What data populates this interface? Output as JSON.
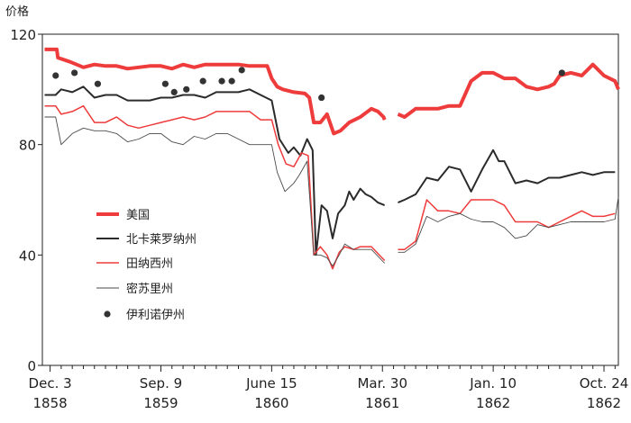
{
  "chart_data": {
    "type": "line",
    "ylabel": "价格",
    "ylim": [
      0,
      120
    ],
    "yticks": [
      0,
      40,
      80,
      120
    ],
    "x_ticks": [
      {
        "x": 0,
        "line1": "Dec. 3",
        "line2": "1858"
      },
      {
        "x": 10,
        "line1": "Sep. 9",
        "line2": "1859"
      },
      {
        "x": 20,
        "line1": "June 15",
        "line2": "1860"
      },
      {
        "x": 30,
        "line1": "Mar. 30",
        "line2": "1861"
      },
      {
        "x": 40,
        "line1": "Jan. 10",
        "line2": "1862"
      },
      {
        "x": 50,
        "line1": "Oct. 24",
        "line2": "1862"
      }
    ],
    "xlim": [
      -0.7,
      51.3
    ],
    "gaps": [
      [
        30.4,
        31.3
      ]
    ],
    "legend_position": "left-center",
    "colors": {
      "us": "#ee3b3b",
      "nc": "#2b2b2b",
      "tn": "#ee3b3b",
      "mo": "#4a4a4a",
      "il": "#333333"
    },
    "series": [
      {
        "key": "us",
        "name": "美国",
        "style": "thick",
        "points": [
          [
            -0.5,
            114.5
          ],
          [
            0.6,
            114.5
          ],
          [
            0.7,
            111.5
          ],
          [
            1.8,
            110
          ],
          [
            3,
            108
          ],
          [
            4,
            109
          ],
          [
            5,
            108.5
          ],
          [
            6,
            108.5
          ],
          [
            7,
            107.5
          ],
          [
            8,
            108
          ],
          [
            9,
            108.5
          ],
          [
            10,
            108.5
          ],
          [
            11,
            107.5
          ],
          [
            12,
            109
          ],
          [
            13,
            108
          ],
          [
            14,
            109
          ],
          [
            15,
            109
          ],
          [
            16,
            109
          ],
          [
            17,
            109
          ],
          [
            18,
            108.5
          ],
          [
            19,
            108.5
          ],
          [
            19.6,
            108.5
          ],
          [
            20,
            104
          ],
          [
            20.5,
            101
          ],
          [
            21,
            100
          ],
          [
            22,
            99
          ],
          [
            23,
            98.5
          ],
          [
            23.4,
            97
          ],
          [
            23.8,
            88
          ],
          [
            24.4,
            88
          ],
          [
            25,
            91
          ],
          [
            25.6,
            84
          ],
          [
            26.2,
            85
          ],
          [
            27,
            88
          ],
          [
            28,
            90
          ],
          [
            29,
            93
          ],
          [
            29.6,
            92
          ],
          [
            30.1,
            90
          ],
          [
            30.2,
            89
          ],
          [
            31.4,
            91
          ],
          [
            32,
            90
          ],
          [
            33,
            93
          ],
          [
            34,
            93
          ],
          [
            35,
            93
          ],
          [
            36,
            94
          ],
          [
            37,
            94
          ],
          [
            38,
            103
          ],
          [
            39,
            106
          ],
          [
            40,
            106
          ],
          [
            41,
            104
          ],
          [
            42,
            104
          ],
          [
            43,
            101
          ],
          [
            44,
            100
          ],
          [
            45,
            101
          ],
          [
            45.5,
            102
          ],
          [
            46,
            105
          ],
          [
            47,
            106
          ],
          [
            48,
            105
          ],
          [
            49,
            109
          ],
          [
            50,
            105
          ],
          [
            51,
            103
          ],
          [
            51.3,
            100
          ]
        ]
      },
      {
        "key": "nc",
        "name": "北卡莱罗纳州",
        "style": "medium",
        "points": [
          [
            -0.5,
            98
          ],
          [
            0.5,
            98
          ],
          [
            1,
            100
          ],
          [
            2,
            99
          ],
          [
            3,
            101
          ],
          [
            4,
            97
          ],
          [
            5,
            98
          ],
          [
            6,
            98
          ],
          [
            7,
            96
          ],
          [
            8,
            96
          ],
          [
            9,
            96
          ],
          [
            10,
            97
          ],
          [
            11,
            97
          ],
          [
            12,
            98
          ],
          [
            13,
            98
          ],
          [
            14,
            97
          ],
          [
            15,
            99
          ],
          [
            16,
            99
          ],
          [
            17,
            99
          ],
          [
            18,
            100
          ],
          [
            19,
            98
          ],
          [
            20,
            96
          ],
          [
            20.7,
            82
          ],
          [
            21.5,
            77
          ],
          [
            22,
            79
          ],
          [
            22.6,
            76
          ],
          [
            23.2,
            82
          ],
          [
            23.7,
            78
          ],
          [
            24,
            40
          ],
          [
            24.5,
            58
          ],
          [
            25,
            56
          ],
          [
            25.5,
            46
          ],
          [
            26,
            55
          ],
          [
            26.6,
            58
          ],
          [
            27,
            63
          ],
          [
            27.4,
            60
          ],
          [
            28,
            64
          ],
          [
            28.5,
            62
          ],
          [
            29,
            61
          ],
          [
            29.6,
            59
          ],
          [
            30.2,
            58
          ],
          [
            31.4,
            59
          ],
          [
            32,
            60
          ],
          [
            33,
            62
          ],
          [
            34,
            68
          ],
          [
            35,
            67
          ],
          [
            36,
            72
          ],
          [
            37,
            71
          ],
          [
            38,
            63
          ],
          [
            39,
            71
          ],
          [
            40,
            78
          ],
          [
            40.5,
            74
          ],
          [
            41,
            74
          ],
          [
            42,
            66
          ],
          [
            43,
            67
          ],
          [
            44,
            66
          ],
          [
            45,
            68
          ],
          [
            46,
            68
          ],
          [
            47,
            69
          ],
          [
            48,
            70
          ],
          [
            49,
            69
          ],
          [
            50,
            70
          ],
          [
            51,
            70
          ]
        ]
      },
      {
        "key": "tn",
        "name": "田纳西州",
        "style": "thin",
        "points": [
          [
            -0.5,
            94
          ],
          [
            0.5,
            94
          ],
          [
            1,
            91
          ],
          [
            2,
            92
          ],
          [
            3,
            94
          ],
          [
            4,
            88
          ],
          [
            5,
            88
          ],
          [
            6,
            90
          ],
          [
            7,
            87
          ],
          [
            8,
            86
          ],
          [
            9,
            87
          ],
          [
            10,
            88
          ],
          [
            11,
            89
          ],
          [
            12,
            90
          ],
          [
            13,
            89
          ],
          [
            14,
            90
          ],
          [
            15,
            92
          ],
          [
            16,
            92
          ],
          [
            17,
            92
          ],
          [
            18,
            92
          ],
          [
            19,
            89
          ],
          [
            20,
            89
          ],
          [
            20.6,
            80
          ],
          [
            21.3,
            73
          ],
          [
            22,
            72
          ],
          [
            22.7,
            77
          ],
          [
            23.3,
            76
          ],
          [
            23.8,
            40
          ],
          [
            24.4,
            43
          ],
          [
            25,
            40
          ],
          [
            25.5,
            35
          ],
          [
            26.1,
            41
          ],
          [
            26.6,
            43
          ],
          [
            27.4,
            42
          ],
          [
            28,
            43
          ],
          [
            29,
            43
          ],
          [
            30.2,
            38
          ],
          [
            31.4,
            42
          ],
          [
            32,
            42
          ],
          [
            33,
            45
          ],
          [
            34,
            60
          ],
          [
            35,
            56
          ],
          [
            36,
            56
          ],
          [
            37,
            55
          ],
          [
            38,
            60
          ],
          [
            39,
            60
          ],
          [
            40,
            60
          ],
          [
            41,
            58
          ],
          [
            42,
            52
          ],
          [
            43,
            52
          ],
          [
            44,
            52
          ],
          [
            45,
            50
          ],
          [
            46,
            52
          ],
          [
            47,
            54
          ],
          [
            48,
            56
          ],
          [
            49,
            54
          ],
          [
            50,
            54
          ],
          [
            51,
            55
          ]
        ]
      },
      {
        "key": "mo",
        "name": "密苏里州",
        "style": "hair",
        "points": [
          [
            -0.5,
            90
          ],
          [
            0.5,
            90
          ],
          [
            1,
            80
          ],
          [
            2,
            84
          ],
          [
            3,
            86
          ],
          [
            4,
            85
          ],
          [
            5,
            85
          ],
          [
            6,
            84
          ],
          [
            7,
            81
          ],
          [
            8,
            82
          ],
          [
            9,
            84
          ],
          [
            10,
            84
          ],
          [
            11,
            81
          ],
          [
            12,
            80
          ],
          [
            13,
            83
          ],
          [
            14,
            82
          ],
          [
            15,
            84
          ],
          [
            16,
            84
          ],
          [
            17,
            82
          ],
          [
            18,
            80
          ],
          [
            19,
            80
          ],
          [
            20,
            80
          ],
          [
            20.5,
            70
          ],
          [
            21.2,
            63
          ],
          [
            22,
            66
          ],
          [
            22.5,
            69
          ],
          [
            23.2,
            74
          ],
          [
            23.8,
            40
          ],
          [
            24.4,
            40
          ],
          [
            25,
            39
          ],
          [
            25.5,
            36
          ],
          [
            26.1,
            40
          ],
          [
            26.6,
            44
          ],
          [
            27.4,
            42
          ],
          [
            28,
            42
          ],
          [
            29,
            42
          ],
          [
            30.2,
            37
          ],
          [
            31.4,
            41
          ],
          [
            32,
            41
          ],
          [
            33,
            44
          ],
          [
            34,
            54
          ],
          [
            35,
            52
          ],
          [
            36,
            54
          ],
          [
            37,
            55
          ],
          [
            38,
            53
          ],
          [
            39,
            52
          ],
          [
            40,
            52
          ],
          [
            41,
            50
          ],
          [
            42,
            46
          ],
          [
            43,
            47
          ],
          [
            44,
            51
          ],
          [
            45,
            50
          ],
          [
            46,
            51
          ],
          [
            47,
            52
          ],
          [
            48,
            52
          ],
          [
            49,
            52
          ],
          [
            50,
            52
          ],
          [
            51,
            53
          ],
          [
            51.3,
            61
          ]
        ]
      }
    ],
    "illinois": {
      "name": "伊利诺伊州",
      "points": [
        [
          0.5,
          105
        ],
        [
          2.2,
          106
        ],
        [
          4.3,
          102
        ],
        [
          10.4,
          102
        ],
        [
          11.2,
          99
        ],
        [
          12.3,
          100
        ],
        [
          13.8,
          103
        ],
        [
          15.5,
          103
        ],
        [
          16.4,
          103
        ],
        [
          17.3,
          107
        ],
        [
          24.5,
          97
        ],
        [
          46.2,
          106
        ]
      ]
    }
  }
}
